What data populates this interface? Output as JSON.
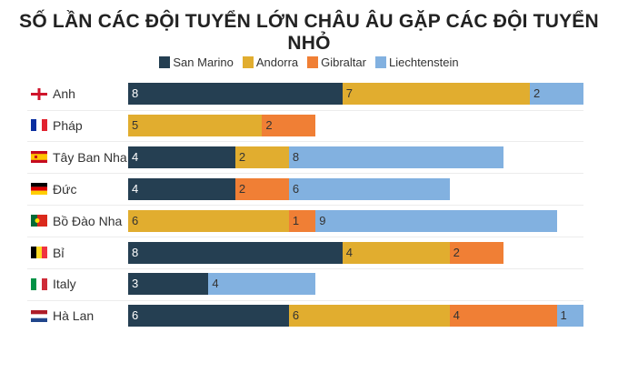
{
  "chart_data": {
    "type": "bar",
    "orientation": "horizontal",
    "stacked": true,
    "title": "SỐ LẦN CÁC ĐỘI TUYỂN LỚN CHÂU ÂU GẶP CÁC ĐỘI TUYỂN NHỎ",
    "legend_position": "top",
    "grid": false,
    "categories": [
      "Anh",
      "Pháp",
      "Tây Ban Nha",
      "Đức",
      "Bồ Đào Nha",
      "Bỉ",
      "Italy",
      "Hà Lan"
    ],
    "flags": [
      "england",
      "france",
      "spain",
      "germany",
      "portugal",
      "belgium",
      "italy",
      "netherlands"
    ],
    "series": [
      {
        "name": "San Marino",
        "color": "#253f52",
        "values": [
          8,
          0,
          4,
          4,
          0,
          8,
          3,
          6
        ]
      },
      {
        "name": "Andorra",
        "color": "#e1ad2f",
        "values": [
          7,
          5,
          2,
          0,
          6,
          4,
          0,
          6
        ]
      },
      {
        "name": "Gibraltar",
        "color": "#f07f35",
        "values": [
          0,
          2,
          0,
          2,
          1,
          2,
          0,
          4
        ]
      },
      {
        "name": "Liechtenstein",
        "color": "#82b1e0",
        "values": [
          2,
          0,
          8,
          6,
          9,
          0,
          4,
          1
        ]
      }
    ],
    "xlim": [
      0,
      17
    ]
  }
}
